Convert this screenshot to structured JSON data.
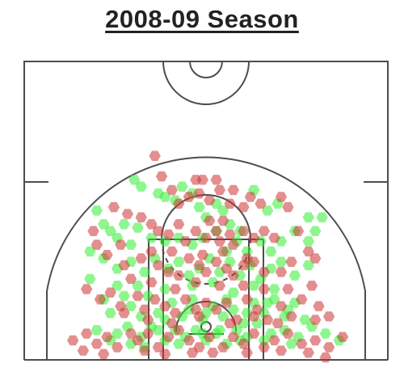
{
  "chart_data": {
    "type": "scatter",
    "title": "2008-09 Season",
    "xlabel": "",
    "ylabel": "",
    "x_range": [
      -250,
      250
    ],
    "y_range": [
      -40,
      370
    ],
    "grid": false,
    "legend": "none",
    "marker": "hexagon",
    "series": [
      {
        "color": "#33ee33",
        "points": [
          [
            -105,
            215
          ],
          [
            -95,
            205
          ],
          [
            -60,
            190
          ],
          [
            -45,
            185
          ],
          [
            -70,
            195
          ],
          [
            -35,
            205
          ],
          [
            -20,
            195
          ],
          [
            -10,
            175
          ],
          [
            0,
            160
          ],
          [
            15,
            180
          ],
          [
            25,
            170
          ],
          [
            35,
            150
          ],
          [
            50,
            140
          ],
          [
            70,
            200
          ],
          [
            90,
            170
          ],
          [
            105,
            180
          ],
          [
            150,
            160
          ],
          [
            170,
            160
          ],
          [
            -160,
            170
          ],
          [
            -150,
            150
          ],
          [
            -140,
            140
          ],
          [
            -120,
            150
          ],
          [
            -100,
            145
          ],
          [
            -80,
            130
          ],
          [
            -60,
            125
          ],
          [
            -40,
            130
          ],
          [
            -20,
            120
          ],
          [
            -5,
            130
          ],
          [
            15,
            140
          ],
          [
            30,
            110
          ],
          [
            45,
            125
          ],
          [
            60,
            110
          ],
          [
            80,
            125
          ],
          [
            95,
            110
          ],
          [
            110,
            125
          ],
          [
            130,
            140
          ],
          [
            150,
            125
          ],
          [
            160,
            140
          ],
          [
            -130,
            130
          ],
          [
            -110,
            120
          ],
          [
            -170,
            110
          ],
          [
            -150,
            100
          ],
          [
            -130,
            85
          ],
          [
            -110,
            95
          ],
          [
            -90,
            80
          ],
          [
            -75,
            100
          ],
          [
            -55,
            85
          ],
          [
            -40,
            95
          ],
          [
            -25,
            75
          ],
          [
            -10,
            85
          ],
          [
            5,
            100
          ],
          [
            20,
            80
          ],
          [
            35,
            95
          ],
          [
            50,
            75
          ],
          [
            65,
            90
          ],
          [
            80,
            70
          ],
          [
            95,
            85
          ],
          [
            110,
            95
          ],
          [
            130,
            75
          ],
          [
            150,
            90
          ],
          [
            -100,
            60
          ],
          [
            -60,
            55
          ],
          [
            -20,
            60
          ],
          [
            10,
            65
          ],
          [
            40,
            50
          ],
          [
            70,
            60
          ],
          [
            100,
            55
          ],
          [
            -170,
            70
          ],
          [
            -150,
            40
          ],
          [
            -130,
            60
          ],
          [
            -110,
            30
          ],
          [
            -85,
            45
          ],
          [
            -70,
            20
          ],
          [
            -50,
            35
          ],
          [
            -35,
            15
          ],
          [
            -20,
            40
          ],
          [
            -5,
            10
          ],
          [
            10,
            30
          ],
          [
            25,
            15
          ],
          [
            40,
            25
          ],
          [
            55,
            5
          ],
          [
            70,
            35
          ],
          [
            85,
            20
          ],
          [
            100,
            40
          ],
          [
            115,
            15
          ],
          [
            130,
            35
          ],
          [
            -140,
            20
          ],
          [
            -120,
            45
          ],
          [
            -95,
            15
          ],
          [
            -60,
            10
          ],
          [
            -25,
            25
          ],
          [
            0,
            20
          ],
          [
            30,
            40
          ],
          [
            60,
            20
          ],
          [
            90,
            35
          ],
          [
            120,
            25
          ],
          [
            145,
            10
          ],
          [
            -130,
            -10
          ],
          [
            -115,
            0
          ],
          [
            -95,
            -15
          ],
          [
            -80,
            0
          ],
          [
            -60,
            -20
          ],
          [
            -45,
            -5
          ],
          [
            -30,
            -15
          ],
          [
            -15,
            -5
          ],
          [
            0,
            -20
          ],
          [
            15,
            -10
          ],
          [
            30,
            -25
          ],
          [
            45,
            -5
          ],
          [
            60,
            -15
          ],
          [
            75,
            5
          ],
          [
            95,
            -10
          ],
          [
            115,
            -5
          ],
          [
            135,
            -15
          ],
          [
            155,
            0
          ],
          [
            175,
            -10
          ],
          [
            195,
            -20
          ],
          [
            -160,
            -5
          ],
          [
            -140,
            -20
          ],
          [
            -110,
            -25
          ],
          [
            -70,
            -5
          ],
          [
            -40,
            -25
          ],
          [
            -5,
            -10
          ],
          [
            20,
            -5
          ],
          [
            50,
            -20
          ],
          [
            85,
            -20
          ],
          [
            125,
            -25
          ],
          [
            -90,
            -30
          ]
        ]
      },
      {
        "color": "#cc3333",
        "points": [
          [
            -75,
            250
          ],
          [
            -65,
            220
          ],
          [
            -15,
            215
          ],
          [
            15,
            215
          ],
          [
            -5,
            215
          ],
          [
            20,
            200
          ],
          [
            35,
            180
          ],
          [
            55,
            175
          ],
          [
            -40,
            180
          ],
          [
            -50,
            200
          ],
          [
            -25,
            190
          ],
          [
            -10,
            195
          ],
          [
            5,
            185
          ],
          [
            40,
            200
          ],
          [
            65,
            190
          ],
          [
            80,
            180
          ],
          [
            5,
            155
          ],
          [
            25,
            155
          ],
          [
            15,
            140
          ],
          [
            -135,
            175
          ],
          [
            -115,
            165
          ],
          [
            -80,
            150
          ],
          [
            -70,
            140
          ],
          [
            -55,
            135
          ],
          [
            -40,
            150
          ],
          [
            -30,
            125
          ],
          [
            -15,
            140
          ],
          [
            0,
            130
          ],
          [
            20,
            125
          ],
          [
            35,
            135
          ],
          [
            55,
            140
          ],
          [
            70,
            130
          ],
          [
            85,
            140
          ],
          [
            100,
            130
          ],
          [
            110,
            190
          ],
          [
            120,
            175
          ],
          [
            135,
            140
          ],
          [
            -165,
            140
          ],
          [
            -160,
            120
          ],
          [
            -125,
            120
          ],
          [
            -95,
            160
          ],
          [
            -50,
            110
          ],
          [
            -5,
            105
          ],
          [
            25,
            110
          ],
          [
            40,
            120
          ],
          [
            60,
            100
          ],
          [
            -145,
            105
          ],
          [
            -120,
            90
          ],
          [
            -95,
            100
          ],
          [
            -80,
            110
          ],
          [
            -70,
            90
          ],
          [
            -55,
            80
          ],
          [
            -40,
            75
          ],
          [
            -25,
            100
          ],
          [
            -10,
            90
          ],
          [
            0,
            80
          ],
          [
            15,
            95
          ],
          [
            30,
            85
          ],
          [
            40,
            75
          ],
          [
            55,
            90
          ],
          [
            70,
            95
          ],
          [
            85,
            80
          ],
          [
            110,
            80
          ],
          [
            125,
            95
          ],
          [
            150,
            110
          ],
          [
            160,
            100
          ],
          [
            -110,
            70
          ],
          [
            -80,
            65
          ],
          [
            -45,
            55
          ],
          [
            -15,
            65
          ],
          [
            20,
            60
          ],
          [
            55,
            60
          ],
          [
            85,
            55
          ],
          [
            120,
            55
          ],
          [
            155,
            60
          ],
          [
            -175,
            55
          ],
          [
            -155,
            40
          ],
          [
            -140,
            50
          ],
          [
            -125,
            30
          ],
          [
            -100,
            45
          ],
          [
            -90,
            25
          ],
          [
            -75,
            40
          ],
          [
            -60,
            30
          ],
          [
            -45,
            20
          ],
          [
            -30,
            40
          ],
          [
            -15,
            25
          ],
          [
            0,
            35
          ],
          [
            15,
            25
          ],
          [
            30,
            35
          ],
          [
            45,
            10
          ],
          [
            60,
            40
          ],
          [
            75,
            25
          ],
          [
            90,
            10
          ],
          [
            110,
            30
          ],
          [
            125,
            15
          ],
          [
            140,
            40
          ],
          [
            165,
            30
          ],
          [
            180,
            15
          ],
          [
            -120,
            20
          ],
          [
            -85,
            10
          ],
          [
            -50,
            5
          ],
          [
            -10,
            15
          ],
          [
            35,
            5
          ],
          [
            70,
            15
          ],
          [
            105,
            5
          ],
          [
            160,
            10
          ],
          [
            -175,
            -10
          ],
          [
            -160,
            -25
          ],
          [
            -145,
            -15
          ],
          [
            -130,
            -30
          ],
          [
            -110,
            -10
          ],
          [
            -100,
            -20
          ],
          [
            -85,
            -10
          ],
          [
            -70,
            -30
          ],
          [
            -55,
            -15
          ],
          [
            -40,
            -5
          ],
          [
            -25,
            -20
          ],
          [
            -10,
            -30
          ],
          [
            5,
            -15
          ],
          [
            25,
            -30
          ],
          [
            40,
            -15
          ],
          [
            55,
            -25
          ],
          [
            70,
            -10
          ],
          [
            85,
            -30
          ],
          [
            100,
            -20
          ],
          [
            120,
            -10
          ],
          [
            140,
            -25
          ],
          [
            160,
            -20
          ],
          [
            180,
            -30
          ],
          [
            200,
            -15
          ],
          [
            -195,
            -20
          ],
          [
            -180,
            -35
          ],
          [
            -150,
            -40
          ],
          [
            -90,
            -35
          ],
          [
            -60,
            -40
          ],
          [
            -20,
            -38
          ],
          [
            10,
            -38
          ],
          [
            60,
            -38
          ],
          [
            110,
            -35
          ],
          [
            150,
            -38
          ],
          [
            175,
            -45
          ]
        ]
      }
    ]
  }
}
